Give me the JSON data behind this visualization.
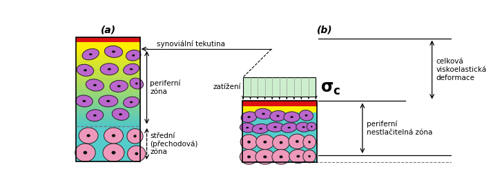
{
  "fig_width": 7.27,
  "fig_height": 2.71,
  "dpi": 100,
  "bg_color": "#ffffff",
  "label_a": "(a)",
  "label_b": "(b)",
  "col_red": "#dd1111",
  "col_yellow": "#ffee00",
  "col_teal": "#55cccc",
  "col_purple_cell": "#bb66cc",
  "col_pink_cell": "#ee99bb",
  "col_cell_outline": "#222222",
  "col_cell_nucleus": "#111111",
  "col_load_box": "#cceecc",
  "col_dashed": "#777777",
  "text_periferni_zona": "periferní\nzóna",
  "text_stredni_zona": "střední\n(přechodová)\nzóna",
  "text_zatizeni": "zatížení",
  "text_sigma": "$\\mathbf{\\sigma_c}$",
  "text_synovialni": "synoviální tekutina",
  "text_celkova": "celková\nviskoelastická\ndeformace",
  "text_periferni_nestlac": "periferní\nnestlačitelná zóna",
  "fontsize_label": 10,
  "fontsize_text": 7.5,
  "fontsize_sigma": 17,
  "fontsize_zatizeni": 7.5
}
